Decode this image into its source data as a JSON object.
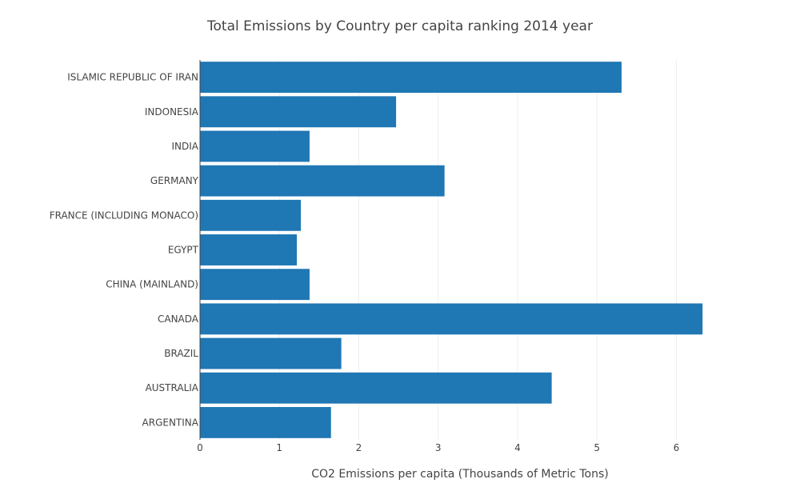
{
  "chart_data": {
    "type": "bar",
    "orientation": "horizontal",
    "title": "Total Emissions by Country per capita ranking 2014 year",
    "xlabel": "CO2 Emissions  per capita (Thousands of Metric Tons)",
    "ylabel": "",
    "xlim": [
      0,
      6.55
    ],
    "xticks": [
      0,
      1,
      2,
      3,
      4,
      5,
      6
    ],
    "grid": "vertical",
    "legend": "none",
    "categories": [
      "ARGENTINA",
      "AUSTRALIA",
      "BRAZIL",
      "CANADA",
      "CHINA (MAINLAND)",
      "EGYPT",
      "FRANCE (INCLUDING MONACO)",
      "GERMANY",
      "INDIA",
      "INDONESIA",
      "ISLAMIC REPUBLIC OF IRAN"
    ],
    "series": [
      {
        "values": [
          1.65,
          4.43,
          1.78,
          6.33,
          1.38,
          1.22,
          1.27,
          3.08,
          1.38,
          2.47,
          5.31
        ]
      }
    ]
  },
  "colors": {
    "bar": "#1f77b4",
    "grid": "#eeeeee",
    "axis_line": "#444444",
    "text": "#444444"
  }
}
